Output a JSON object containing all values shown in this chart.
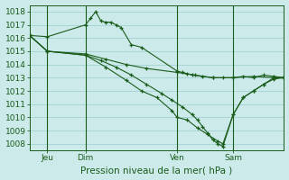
{
  "title": "Pression niveau de la mer( hPa )",
  "ylabel_values": [
    1008,
    1009,
    1010,
    1011,
    1012,
    1013,
    1014,
    1015,
    1016,
    1017,
    1018
  ],
  "ylim": [
    1007.5,
    1018.5
  ],
  "xlim": [
    0,
    100
  ],
  "bg_color": "#cceaea",
  "grid_color": "#99cccc",
  "line_color": "#1a5c1a",
  "x_ticks_pos": [
    7,
    22,
    58,
    80
  ],
  "x_tick_labels": [
    "Jeu",
    "Dim",
    "Ven",
    "Sam"
  ],
  "x_vlines": [
    7,
    22,
    58,
    80
  ],
  "series": [
    {
      "x": [
        0,
        7,
        22,
        24,
        26,
        28,
        30,
        32,
        34,
        36,
        40,
        44,
        58,
        60,
        62,
        64,
        68,
        72,
        76,
        80,
        84,
        88,
        92,
        96,
        100
      ],
      "y": [
        1016.2,
        1016.1,
        1017.0,
        1017.5,
        1018.0,
        1017.3,
        1017.2,
        1017.2,
        1017.0,
        1016.8,
        1015.5,
        1015.3,
        1013.5,
        1013.4,
        1013.3,
        1013.2,
        1013.1,
        1013.0,
        1013.0,
        1013.0,
        1013.1,
        1013.0,
        1013.2,
        1013.1,
        1013.0
      ]
    },
    {
      "x": [
        0,
        7,
        22,
        30,
        38,
        46,
        58,
        65,
        72,
        80,
        88,
        96,
        100
      ],
      "y": [
        1016.2,
        1015.0,
        1014.8,
        1014.4,
        1014.0,
        1013.7,
        1013.4,
        1013.2,
        1013.0,
        1013.0,
        1013.1,
        1013.0,
        1013.0
      ]
    },
    {
      "x": [
        0,
        7,
        22,
        30,
        38,
        44,
        50,
        56,
        58,
        62,
        66,
        70,
        74,
        76,
        80,
        84,
        88,
        92,
        96,
        100
      ],
      "y": [
        1016.2,
        1015.0,
        1014.7,
        1013.8,
        1012.8,
        1012.0,
        1011.5,
        1010.5,
        1010.0,
        1009.8,
        1009.2,
        1008.7,
        1008.2,
        1008.0,
        1010.2,
        1011.5,
        1012.0,
        1012.5,
        1013.0,
        1013.0
      ]
    },
    {
      "x": [
        0,
        7,
        22,
        28,
        34,
        40,
        46,
        52,
        56,
        60,
        64,
        66,
        68,
        70,
        72,
        74,
        76,
        80,
        84,
        88,
        92,
        96,
        100
      ],
      "y": [
        1016.2,
        1015.0,
        1014.7,
        1014.3,
        1013.8,
        1013.2,
        1012.5,
        1011.8,
        1011.3,
        1010.8,
        1010.2,
        1009.8,
        1009.3,
        1008.8,
        1008.3,
        1008.0,
        1007.8,
        1010.2,
        1011.5,
        1012.0,
        1012.5,
        1012.9,
        1013.0
      ]
    }
  ]
}
